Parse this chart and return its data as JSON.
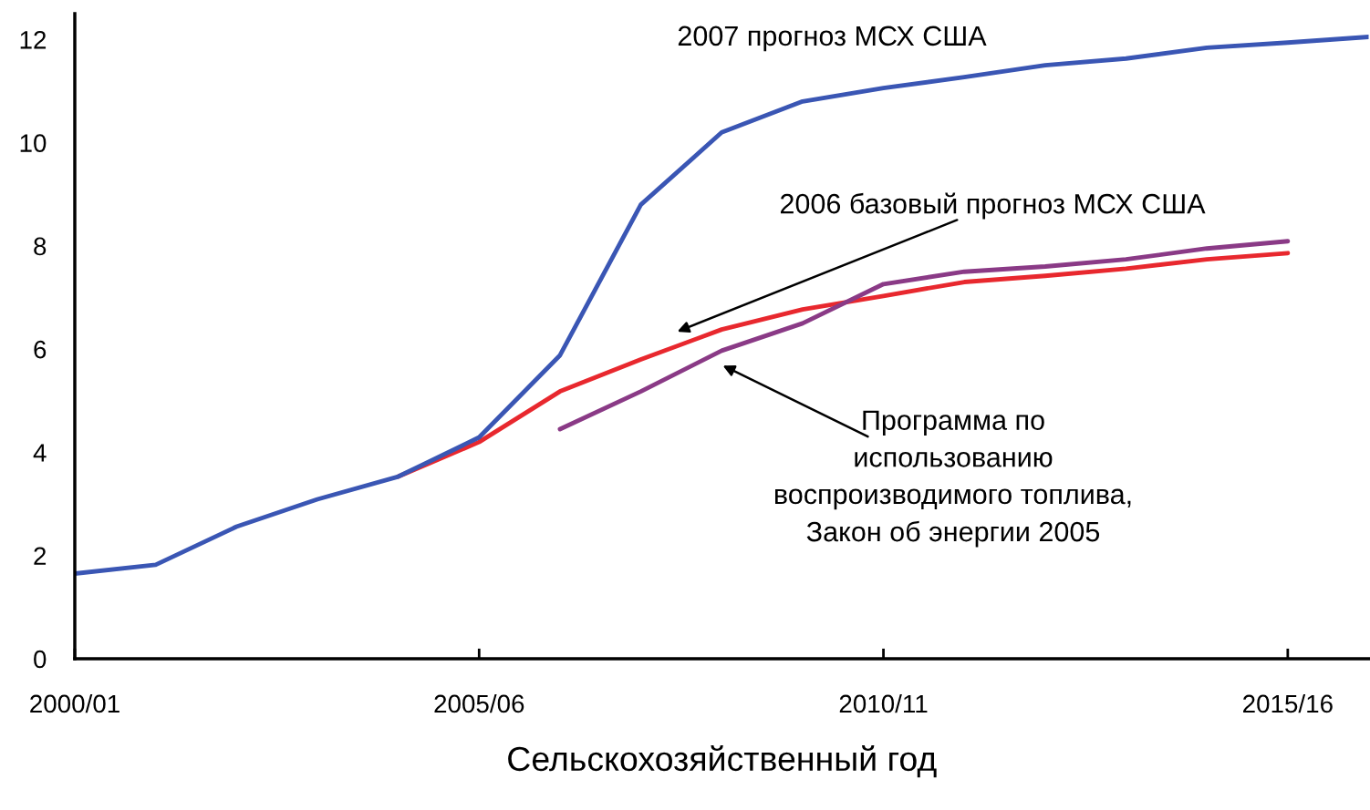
{
  "chart_data": {
    "type": "line",
    "xlabel": "Сельскохозяйственный год",
    "categories": [
      "2000/01",
      null,
      null,
      null,
      null,
      "2005/06",
      null,
      null,
      null,
      null,
      "2010/11",
      null,
      null,
      null,
      null,
      "2015/16",
      null
    ],
    "ylim": [
      0,
      12.5
    ],
    "yticks": [
      0,
      2,
      4,
      6,
      8,
      10,
      12
    ],
    "marker": "none",
    "line_style": "solid",
    "series": [
      {
        "color": "#e8282e",
        "values": [
          null,
          null,
          null,
          null,
          3.53,
          4.2,
          5.18,
          5.8,
          6.38,
          6.77,
          7.03,
          7.3,
          7.42,
          7.56,
          7.74,
          7.86,
          null
        ]
      },
      {
        "color": "#8a3a86",
        "values": [
          null,
          null,
          null,
          null,
          null,
          null,
          4.45,
          5.18,
          5.97,
          6.5,
          7.26,
          7.5,
          7.6,
          7.74,
          7.95,
          8.09,
          null
        ]
      },
      {
        "color": "#3a56b4",
        "values": [
          1.65,
          1.82,
          2.56,
          3.09,
          3.53,
          4.29,
          5.88,
          8.8,
          10.2,
          10.8,
          11.06,
          11.27,
          11.5,
          11.63,
          11.84,
          11.94,
          12.05
        ]
      }
    ],
    "annotations": [
      "2007 прогноз МСХ США",
      "2006 базовый прогноз МСХ США",
      "Программа по\nиспользованию\nвоспроизводимого топлива,\nЗакон об энергии 2005"
    ]
  }
}
